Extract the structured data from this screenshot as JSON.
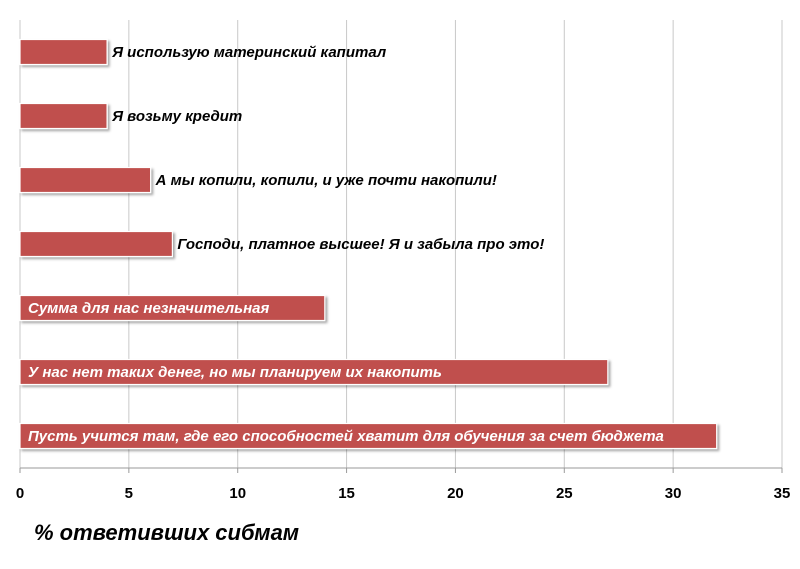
{
  "chart_data": {
    "type": "bar",
    "orientation": "horizontal",
    "categories": [
      "Я использую материнский капитал",
      "Я возьму кредит",
      "А мы копили, копили, и уже почти накопили!",
      "Господи, платное высшее! Я и забыла про это!",
      "Сумма для нас незначительная",
      "У нас нет таких денег, но мы планируем их накопить",
      "Пусть учится там, где его способностей хватит для обучения за счет бюджета"
    ],
    "values": [
      4,
      4,
      6,
      7,
      14,
      27,
      32
    ],
    "xlabel": "% ответивших сибмам",
    "xlim": [
      0,
      35
    ],
    "xticks": [
      "0",
      "5",
      "10",
      "15",
      "20",
      "25",
      "30",
      "35"
    ],
    "bar_color": "#c0504d",
    "grid": true,
    "legend": "none"
  }
}
